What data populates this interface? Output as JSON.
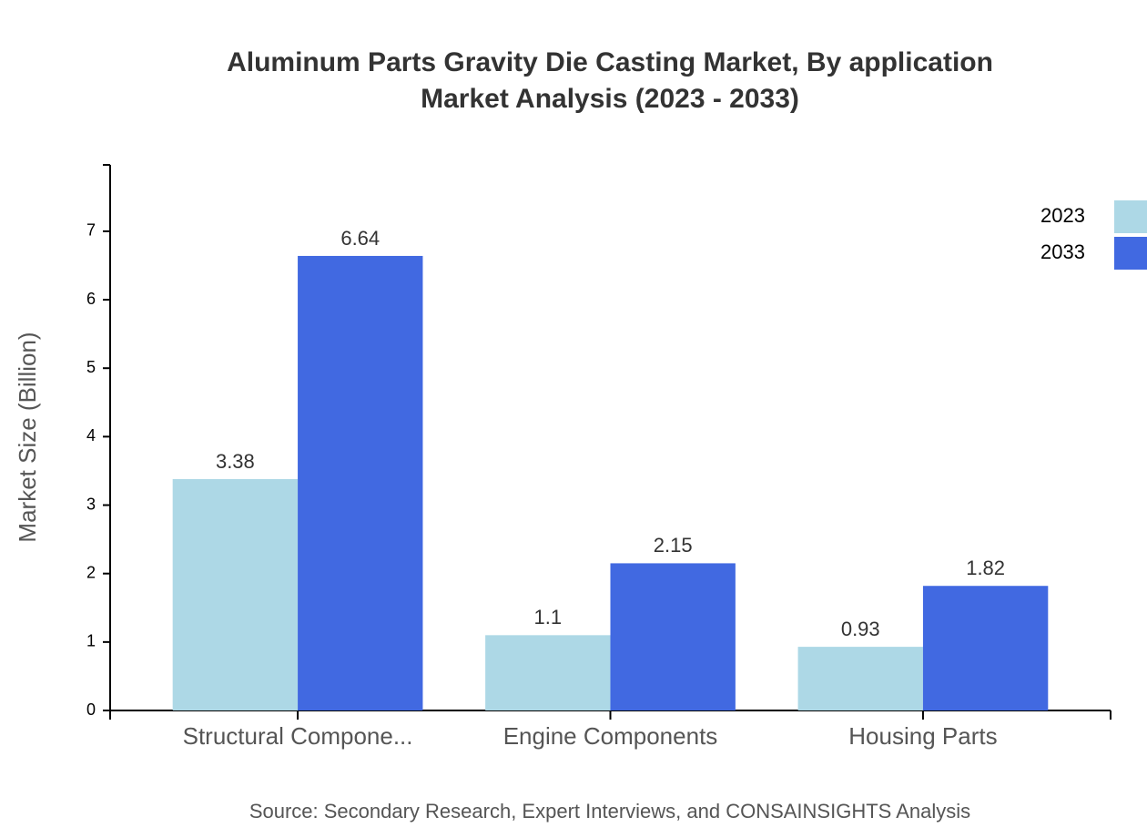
{
  "chart_data": {
    "type": "bar",
    "title": "Aluminum Parts Gravity Die Casting Market, By application",
    "subtitle": "Market Analysis (2023 - 2033)",
    "y_label": "Market Size (Billion)",
    "source": "Source: Secondary Research, Expert Interviews, and CONSAINSIGHTS Analysis",
    "categories": [
      "Structural Compone...",
      "Engine Components",
      "Housing Parts"
    ],
    "series": [
      {
        "name": "2023",
        "color": "#add8e6",
        "values": [
          3.38,
          1.1,
          0.93
        ]
      },
      {
        "name": "2033",
        "color": "#4169e1",
        "values": [
          6.64,
          2.15,
          1.82
        ]
      }
    ],
    "ylim": [
      0,
      7.97
    ],
    "yticks": [
      0,
      1,
      2,
      3,
      4,
      5,
      6,
      7
    ],
    "legend": "top-right"
  }
}
